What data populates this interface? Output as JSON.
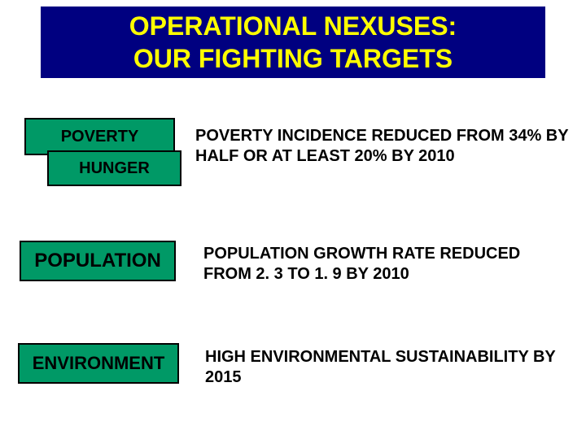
{
  "title": {
    "line1": "OPERATIONAL NEXUSES:",
    "line2": "OUR FIGHTING TARGETS",
    "bg_color": "#000080",
    "text_color": "#ffff00",
    "font_size": 32
  },
  "tags": {
    "poverty": {
      "label": "POVERTY",
      "bg_color": "#009966",
      "border_color": "#000000"
    },
    "hunger": {
      "label": "HUNGER",
      "bg_color": "#009966",
      "border_color": "#000000"
    },
    "population": {
      "label": "POPULATION",
      "bg_color": "#009966",
      "border_color": "#000000"
    },
    "environment": {
      "label": "ENVIRONMENT",
      "bg_color": "#009966",
      "border_color": "#000000"
    }
  },
  "descriptions": {
    "poverty": "POVERTY INCIDENCE REDUCED FROM 34% BY HALF OR AT LEAST 20% BY 2010",
    "population": "POPULATION GROWTH RATE REDUCED FROM 2. 3 TO 1. 9 BY 2010",
    "environment": "HIGH ENVIRONMENTAL SUSTAINABILITY BY 2015"
  },
  "styling": {
    "slide_bg": "#ffffff",
    "text_color": "#000000",
    "desc_font_size": 20,
    "tag_font_size_small": 20,
    "tag_font_size_large": 24
  }
}
